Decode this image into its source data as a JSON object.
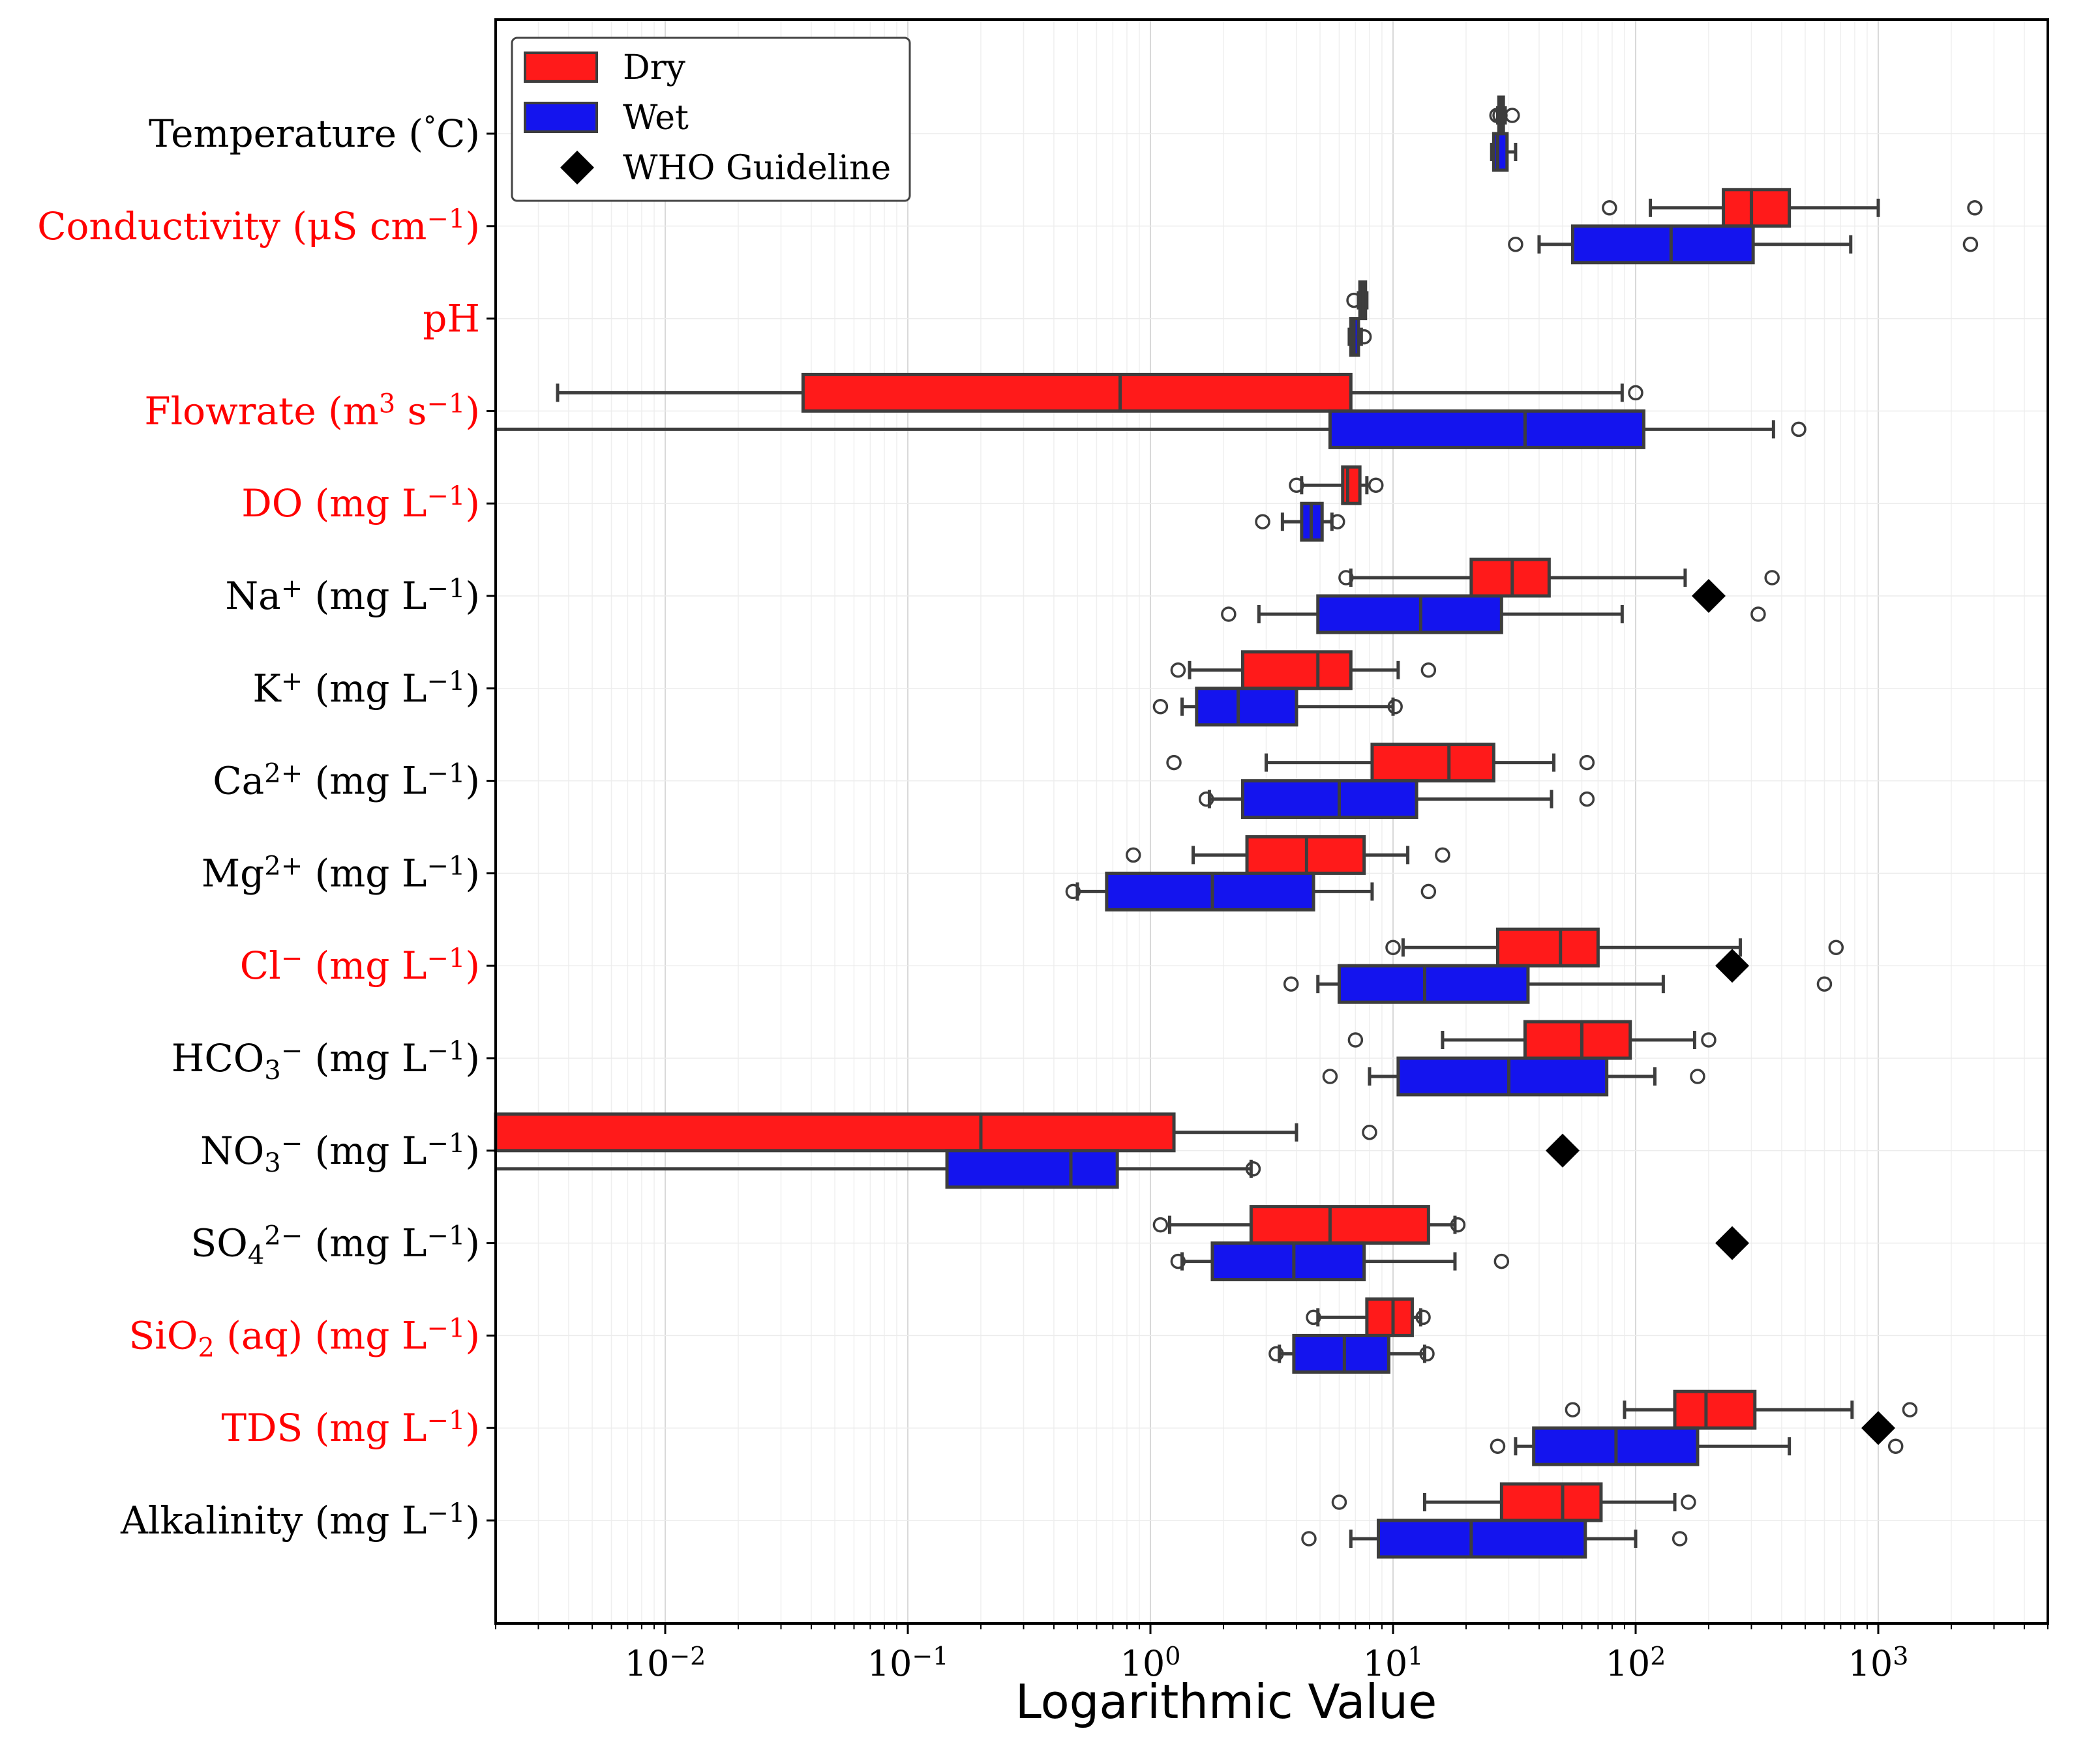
{
  "chart_data": {
    "type": "boxplot",
    "orientation": "horizontal",
    "xscale": "log",
    "xlim": [
      0.002,
      5000
    ],
    "xlabel": "Logarithmic Value",
    "x_ticks": [
      {
        "value": 0.01,
        "base": "10",
        "exp": "−2"
      },
      {
        "value": 0.1,
        "base": "10",
        "exp": "−1"
      },
      {
        "value": 1,
        "base": "10",
        "exp": "0"
      },
      {
        "value": 10,
        "base": "10",
        "exp": "1"
      },
      {
        "value": 100,
        "base": "10",
        "exp": "2"
      },
      {
        "value": 1000,
        "base": "10",
        "exp": "3"
      }
    ],
    "grid": true,
    "legend": {
      "location": "top-left",
      "entries": [
        {
          "label": "Dry",
          "color": "#ff1a1a"
        },
        {
          "label": "Wet",
          "color": "#1414ee"
        },
        {
          "label": "WHO Guideline",
          "marker": "diamond",
          "color": "#000000"
        }
      ]
    },
    "colors": {
      "dry": "#ff1a1a",
      "wet": "#1414ee",
      "who": "#000000",
      "highlight_label": "#ff0000",
      "normal_label": "#000000",
      "edge": "#3d3d3d"
    },
    "categories": [
      {
        "name": "Temperature",
        "unit": " (°C)",
        "highlight": false,
        "parts": [
          {
            "t": "Temperature (",
            "s": null
          },
          {
            "t": "°",
            "s": "sup"
          },
          {
            "t": "C)",
            "s": null
          }
        ],
        "dry": {
          "whislo": 27,
          "q1": 27.3,
          "med": 27.8,
          "q3": 28.5,
          "whishi": 29,
          "fliers": [
            26.8,
            27.6,
            31
          ]
        },
        "wet": {
          "whislo": 25.5,
          "q1": 26,
          "med": 27,
          "q3": 29.5,
          "whishi": 32,
          "fliers": []
        },
        "who": null
      },
      {
        "name": "Conductivity",
        "highlight": true,
        "parts": [
          {
            "t": "Conductivity (μS cm",
            "s": null
          },
          {
            "t": "−1",
            "s": "sup"
          },
          {
            "t": ")",
            "s": null
          }
        ],
        "dry": {
          "whislo": 115,
          "q1": 230,
          "med": 300,
          "q3": 430,
          "whishi": 1000,
          "fliers": [
            78,
            2500
          ]
        },
        "wet": {
          "whislo": 40,
          "q1": 55,
          "med": 140,
          "q3": 305,
          "whishi": 770,
          "fliers": [
            32,
            2400
          ]
        },
        "who": null
      },
      {
        "name": "pH",
        "highlight": true,
        "parts": [
          {
            "t": "pH",
            "s": null
          }
        ],
        "dry": {
          "whislo": 7.2,
          "q1": 7.3,
          "med": 7.5,
          "q3": 7.7,
          "whishi": 7.8,
          "fliers": [
            6.9
          ]
        },
        "wet": {
          "whislo": 6.6,
          "q1": 6.7,
          "med": 6.9,
          "q3": 7.2,
          "whishi": 7.4,
          "fliers": [
            7.6
          ]
        },
        "who": null
      },
      {
        "name": "Flowrate",
        "highlight": true,
        "parts": [
          {
            "t": "Flowrate (m",
            "s": null
          },
          {
            "t": "3",
            "s": "sup"
          },
          {
            "t": " s",
            "s": null
          },
          {
            "t": "−1",
            "s": "sup"
          },
          {
            "t": ")",
            "s": null
          }
        ],
        "dry": {
          "whislo": 0.0036,
          "q1": 0.037,
          "med": 0.75,
          "q3": 6.7,
          "whishi": 88,
          "fliers": [
            100
          ]
        },
        "wet": {
          "whislo": 0.002,
          "q1": 5.5,
          "med": 35,
          "q3": 108,
          "whishi": 370,
          "fliers": [
            470
          ]
        },
        "who": null
      },
      {
        "name": "DO",
        "highlight": true,
        "parts": [
          {
            "t": "DO (mg L",
            "s": null
          },
          {
            "t": "−1",
            "s": "sup"
          },
          {
            "t": ")",
            "s": null
          }
        ],
        "dry": {
          "whislo": 4.2,
          "q1": 6.2,
          "med": 6.5,
          "q3": 7.3,
          "whishi": 7.8,
          "fliers": [
            4,
            8.5
          ]
        },
        "wet": {
          "whislo": 3.5,
          "q1": 4.2,
          "med": 4.6,
          "q3": 5.1,
          "whishi": 5.6,
          "fliers": [
            2.9,
            5.9
          ]
        },
        "who": null
      },
      {
        "name": "Na+",
        "highlight": false,
        "parts": [
          {
            "t": "Na",
            "s": null
          },
          {
            "t": "+",
            "s": "sup"
          },
          {
            "t": " (mg L",
            "s": null
          },
          {
            "t": "−1",
            "s": "sup"
          },
          {
            "t": ")",
            "s": null
          }
        ],
        "dry": {
          "whislo": 6.7,
          "q1": 21,
          "med": 31,
          "q3": 44,
          "whishi": 160,
          "fliers": [
            6.4,
            365
          ]
        },
        "wet": {
          "whislo": 2.8,
          "q1": 4.9,
          "med": 13,
          "q3": 28,
          "whishi": 88,
          "fliers": [
            2.1,
            320
          ]
        },
        "who": 200
      },
      {
        "name": "K+",
        "highlight": false,
        "parts": [
          {
            "t": "K",
            "s": null
          },
          {
            "t": "+",
            "s": "sup"
          },
          {
            "t": " (mg L",
            "s": null
          },
          {
            "t": "−1",
            "s": "sup"
          },
          {
            "t": ")",
            "s": null
          }
        ],
        "dry": {
          "whislo": 1.45,
          "q1": 2.4,
          "med": 4.9,
          "q3": 6.7,
          "whishi": 10.5,
          "fliers": [
            1.3,
            14
          ]
        },
        "wet": {
          "whislo": 1.35,
          "q1": 1.55,
          "med": 2.3,
          "q3": 4,
          "whishi": 10,
          "fliers": [
            1.1,
            10.2
          ]
        },
        "who": null
      },
      {
        "name": "Ca2+",
        "highlight": false,
        "parts": [
          {
            "t": "Ca",
            "s": null
          },
          {
            "t": "2+",
            "s": "sup"
          },
          {
            "t": " (mg L",
            "s": null
          },
          {
            "t": "−1",
            "s": "sup"
          },
          {
            "t": ")",
            "s": null
          }
        ],
        "dry": {
          "whislo": 3,
          "q1": 8.2,
          "med": 17,
          "q3": 26,
          "whishi": 46,
          "fliers": [
            1.25,
            63
          ]
        },
        "wet": {
          "whislo": 1.75,
          "q1": 2.4,
          "med": 6,
          "q3": 12.5,
          "whishi": 45,
          "fliers": [
            1.7,
            63
          ]
        },
        "who": null
      },
      {
        "name": "Mg2+",
        "highlight": false,
        "parts": [
          {
            "t": "Mg",
            "s": null
          },
          {
            "t": "2+",
            "s": "sup"
          },
          {
            "t": " (mg L",
            "s": null
          },
          {
            "t": "−1",
            "s": "sup"
          },
          {
            "t": ")",
            "s": null
          }
        ],
        "dry": {
          "whislo": 1.5,
          "q1": 2.5,
          "med": 4.4,
          "q3": 7.6,
          "whishi": 11.5,
          "fliers": [
            0.85,
            16
          ]
        },
        "wet": {
          "whislo": 0.5,
          "q1": 0.66,
          "med": 1.8,
          "q3": 4.7,
          "whishi": 8.2,
          "fliers": [
            0.48,
            14
          ]
        },
        "who": null
      },
      {
        "name": "Cl-",
        "highlight": true,
        "parts": [
          {
            "t": "Cl",
            "s": null
          },
          {
            "t": "−",
            "s": "sup"
          },
          {
            "t": " (mg L",
            "s": null
          },
          {
            "t": "−1",
            "s": "sup"
          },
          {
            "t": ")",
            "s": null
          }
        ],
        "dry": {
          "whislo": 11,
          "q1": 27,
          "med": 49,
          "q3": 70,
          "whishi": 270,
          "fliers": [
            10,
            670
          ]
        },
        "wet": {
          "whislo": 4.9,
          "q1": 6,
          "med": 13.5,
          "q3": 36,
          "whishi": 130,
          "fliers": [
            3.8,
            600
          ]
        },
        "who": 250
      },
      {
        "name": "HCO3-",
        "highlight": false,
        "parts": [
          {
            "t": "HCO",
            "s": null
          },
          {
            "t": "3",
            "s": "sub"
          },
          {
            "t": "−",
            "s": "sup"
          },
          {
            "t": " (mg L",
            "s": null
          },
          {
            "t": "−1",
            "s": "sup"
          },
          {
            "t": ")",
            "s": null
          }
        ],
        "dry": {
          "whislo": 16,
          "q1": 35,
          "med": 60,
          "q3": 95,
          "whishi": 175,
          "fliers": [
            7,
            200
          ]
        },
        "wet": {
          "whislo": 8,
          "q1": 10.5,
          "med": 30,
          "q3": 76,
          "whishi": 120,
          "fliers": [
            5.5,
            180
          ]
        },
        "who": null
      },
      {
        "name": "NO3-",
        "highlight": false,
        "parts": [
          {
            "t": "NO",
            "s": null
          },
          {
            "t": "3",
            "s": "sub"
          },
          {
            "t": "−",
            "s": "sup"
          },
          {
            "t": " (mg L",
            "s": null
          },
          {
            "t": "−1",
            "s": "sup"
          },
          {
            "t": ")",
            "s": null
          }
        ],
        "dry": {
          "whislo": 0.002,
          "q1": 0.002,
          "med": 0.2,
          "q3": 1.25,
          "whishi": 4,
          "fliers": [
            8
          ]
        },
        "wet": {
          "whislo": 0.002,
          "q1": 0.145,
          "med": 0.47,
          "q3": 0.73,
          "whishi": 2.6,
          "fliers": [
            2.65
          ]
        },
        "who": 50
      },
      {
        "name": "SO42-",
        "highlight": false,
        "parts": [
          {
            "t": "SO",
            "s": null
          },
          {
            "t": "4",
            "s": "sub"
          },
          {
            "t": "2−",
            "s": "sup"
          },
          {
            "t": " (mg L",
            "s": null
          },
          {
            "t": "−1",
            "s": "sup"
          },
          {
            "t": ")",
            "s": null
          }
        ],
        "dry": {
          "whislo": 1.2,
          "q1": 2.6,
          "med": 5.5,
          "q3": 14,
          "whishi": 18,
          "fliers": [
            1.1,
            18.5
          ]
        },
        "wet": {
          "whislo": 1.35,
          "q1": 1.8,
          "med": 3.9,
          "q3": 7.6,
          "whishi": 18,
          "fliers": [
            1.3,
            28
          ]
        },
        "who": 250
      },
      {
        "name": "SiO2 (aq)",
        "highlight": true,
        "parts": [
          {
            "t": "SiO",
            "s": null
          },
          {
            "t": "2",
            "s": "sub"
          },
          {
            "t": " (aq) (mg L",
            "s": null
          },
          {
            "t": "−1",
            "s": "sup"
          },
          {
            "t": ")",
            "s": null
          }
        ],
        "dry": {
          "whislo": 4.9,
          "q1": 7.8,
          "med": 10,
          "q3": 12,
          "whishi": 13,
          "fliers": [
            4.7,
            13.3
          ]
        },
        "wet": {
          "whislo": 3.4,
          "q1": 3.9,
          "med": 6.3,
          "q3": 9.6,
          "whishi": 13.5,
          "fliers": [
            3.3,
            13.8
          ]
        },
        "who": null
      },
      {
        "name": "TDS",
        "highlight": true,
        "parts": [
          {
            "t": "TDS (mg L",
            "s": null
          },
          {
            "t": "−1",
            "s": "sup"
          },
          {
            "t": ")",
            "s": null
          }
        ],
        "dry": {
          "whislo": 90,
          "q1": 145,
          "med": 195,
          "q3": 310,
          "whishi": 780,
          "fliers": [
            55,
            1350
          ]
        },
        "wet": {
          "whislo": 32,
          "q1": 38,
          "med": 83,
          "q3": 180,
          "whishi": 430,
          "fliers": [
            27,
            1180
          ]
        },
        "who": 1000
      },
      {
        "name": "Alkalinity",
        "highlight": false,
        "parts": [
          {
            "t": "Alkalinity (mg L",
            "s": null
          },
          {
            "t": "−1",
            "s": "sup"
          },
          {
            "t": ")",
            "s": null
          }
        ],
        "dry": {
          "whislo": 13.5,
          "q1": 28,
          "med": 50,
          "q3": 72,
          "whishi": 145,
          "fliers": [
            6,
            165
          ]
        },
        "wet": {
          "whislo": 6.7,
          "q1": 8.7,
          "med": 21,
          "q3": 62,
          "whishi": 100,
          "fliers": [
            4.5,
            152
          ]
        },
        "who": null
      }
    ]
  }
}
